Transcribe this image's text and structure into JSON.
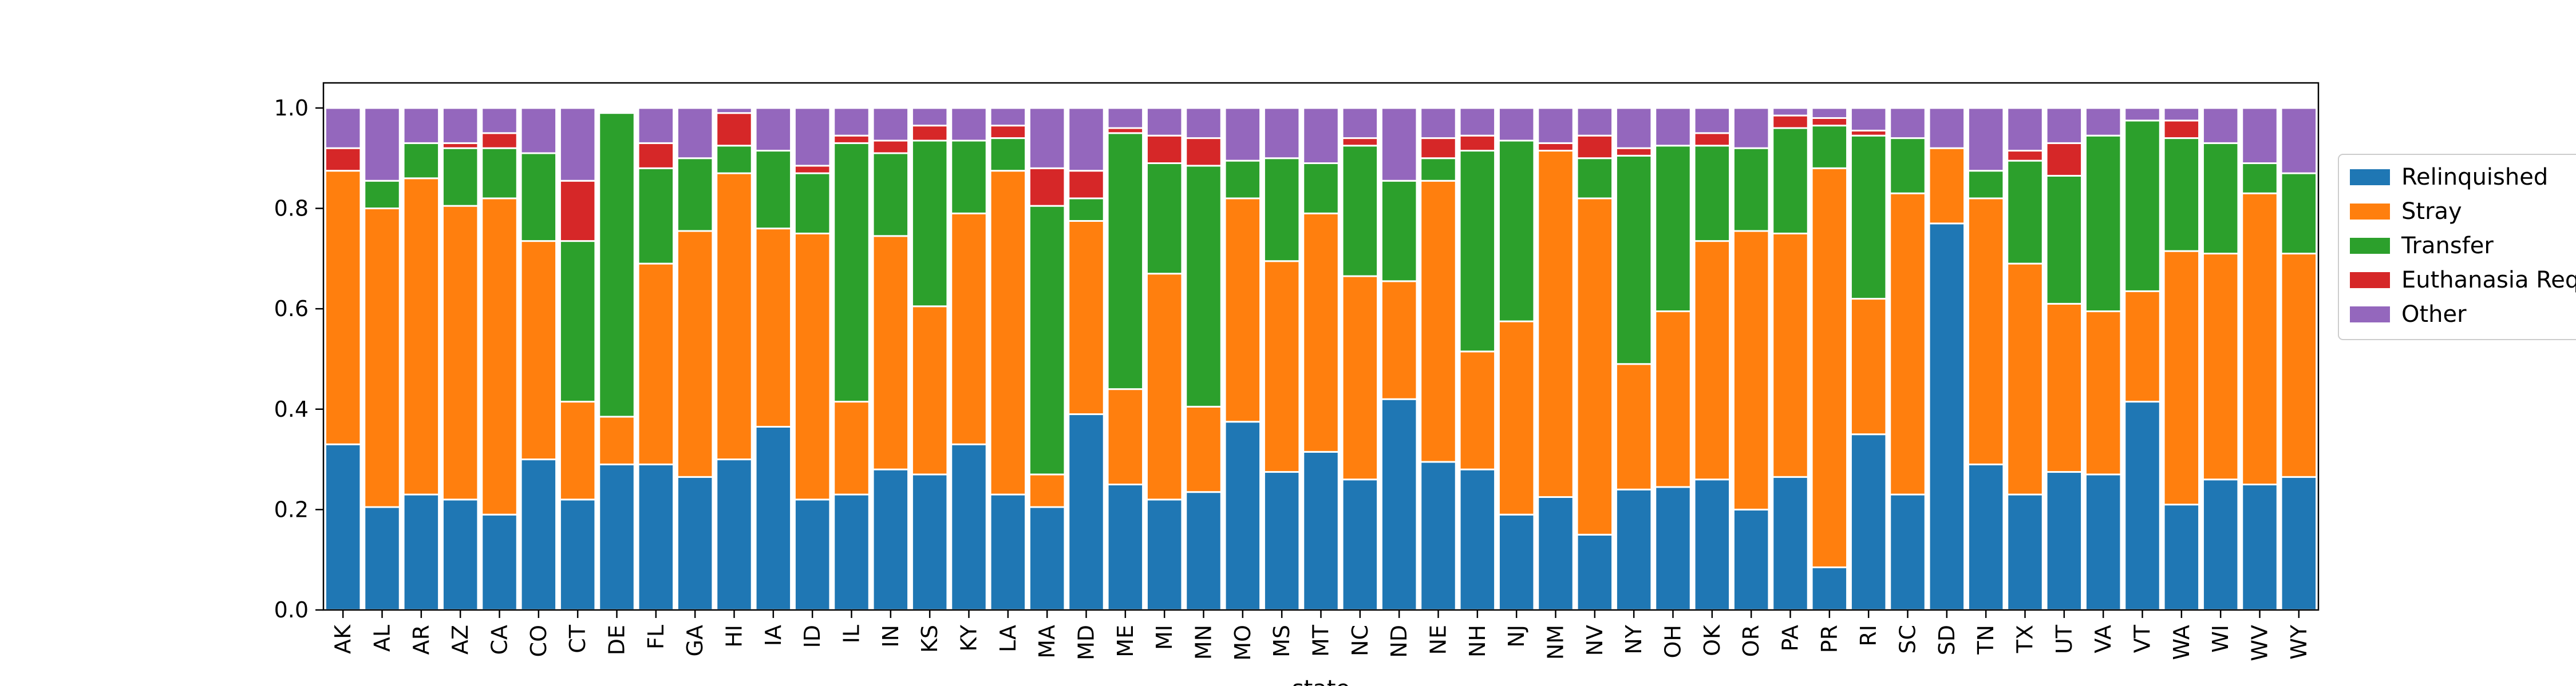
{
  "chart_data": {
    "type": "bar",
    "stacked": true,
    "title": "",
    "xlabel": "state",
    "ylabel": "",
    "ylim": [
      0,
      1.05
    ],
    "yticks": [
      0.0,
      0.2,
      0.4,
      0.6,
      0.8,
      1.0
    ],
    "ytick_labels": [
      "0.0",
      "0.2",
      "0.4",
      "0.6",
      "0.8",
      "1.0"
    ],
    "grid": false,
    "legend_position": "right, outside plot",
    "categories": [
      "AK",
      "AL",
      "AR",
      "AZ",
      "CA",
      "CO",
      "CT",
      "DE",
      "FL",
      "GA",
      "HI",
      "IA",
      "ID",
      "IL",
      "IN",
      "KS",
      "KY",
      "LA",
      "MA",
      "MD",
      "ME",
      "MI",
      "MN",
      "MO",
      "MS",
      "MT",
      "NC",
      "ND",
      "NE",
      "NH",
      "NJ",
      "NM",
      "NV",
      "NY",
      "OH",
      "OK",
      "OR",
      "PA",
      "PR",
      "RI",
      "SC",
      "SD",
      "TN",
      "TX",
      "UT",
      "VA",
      "VT",
      "WA",
      "WI",
      "WV",
      "WY"
    ],
    "series": [
      {
        "name": "Relinquished",
        "color": "#1f77b4",
        "values": [
          0.33,
          0.205,
          0.23,
          0.22,
          0.19,
          0.3,
          0.22,
          0.29,
          0.29,
          0.265,
          0.3,
          0.365,
          0.22,
          0.23,
          0.28,
          0.27,
          0.33,
          0.23,
          0.205,
          0.39,
          0.25,
          0.22,
          0.235,
          0.375,
          0.275,
          0.315,
          0.26,
          0.42,
          0.295,
          0.28,
          0.19,
          0.225,
          0.15,
          0.24,
          0.245,
          0.26,
          0.2,
          0.265,
          0.085,
          0.35,
          0.23,
          0.77,
          0.29,
          0.23,
          0.275,
          0.27,
          0.415,
          0.21,
          0.26,
          0.25,
          0.265
        ]
      },
      {
        "name": "Stray",
        "color": "#ff7f0e",
        "values": [
          0.545,
          0.595,
          0.63,
          0.585,
          0.63,
          0.435,
          0.195,
          0.095,
          0.4,
          0.49,
          0.57,
          0.395,
          0.53,
          0.185,
          0.465,
          0.335,
          0.46,
          0.645,
          0.065,
          0.385,
          0.19,
          0.45,
          0.17,
          0.445,
          0.42,
          0.475,
          0.405,
          0.235,
          0.56,
          0.235,
          0.385,
          0.69,
          0.67,
          0.25,
          0.35,
          0.475,
          0.555,
          0.485,
          0.795,
          0.27,
          0.6,
          0.15,
          0.53,
          0.46,
          0.335,
          0.325,
          0.22,
          0.505,
          0.45,
          0.58,
          0.445
        ]
      },
      {
        "name": "Transfer",
        "color": "#2ca02c",
        "values": [
          0.0,
          0.055,
          0.07,
          0.115,
          0.1,
          0.175,
          0.32,
          0.605,
          0.19,
          0.145,
          0.055,
          0.155,
          0.12,
          0.515,
          0.165,
          0.33,
          0.145,
          0.065,
          0.535,
          0.045,
          0.51,
          0.22,
          0.48,
          0.075,
          0.205,
          0.1,
          0.26,
          0.2,
          0.045,
          0.4,
          0.36,
          0.0,
          0.08,
          0.415,
          0.33,
          0.19,
          0.165,
          0.21,
          0.085,
          0.325,
          0.11,
          0.0,
          0.055,
          0.205,
          0.255,
          0.35,
          0.34,
          0.225,
          0.22,
          0.06,
          0.16
        ]
      },
      {
        "name": "Euthanasia Requested",
        "color": "#d62728",
        "values": [
          0.045,
          0.0,
          0.0,
          0.01,
          0.03,
          0.0,
          0.12,
          0.0,
          0.05,
          0.0,
          0.065,
          0.0,
          0.015,
          0.015,
          0.025,
          0.03,
          0.0,
          0.025,
          0.075,
          0.055,
          0.01,
          0.055,
          0.055,
          0.0,
          0.0,
          0.0,
          0.015,
          0.0,
          0.04,
          0.03,
          0.0,
          0.015,
          0.045,
          0.015,
          0.0,
          0.025,
          0.0,
          0.025,
          0.015,
          0.01,
          0.0,
          0.0,
          0.0,
          0.02,
          0.065,
          0.0,
          0.0,
          0.035,
          0.0,
          0.0,
          0.0
        ]
      },
      {
        "name": "Other",
        "color": "#9467bd",
        "values": [
          0.08,
          0.145,
          0.07,
          0.07,
          0.05,
          0.09,
          0.145,
          0.0,
          0.07,
          0.1,
          0.01,
          0.085,
          0.115,
          0.055,
          0.065,
          0.035,
          0.065,
          0.035,
          0.12,
          0.125,
          0.04,
          0.055,
          0.06,
          0.105,
          0.1,
          0.11,
          0.06,
          0.145,
          0.06,
          0.055,
          0.065,
          0.07,
          0.055,
          0.08,
          0.075,
          0.05,
          0.08,
          0.015,
          0.02,
          0.045,
          0.06,
          0.08,
          0.125,
          0.085,
          0.07,
          0.055,
          0.025,
          0.025,
          0.07,
          0.11,
          0.13
        ]
      }
    ]
  }
}
